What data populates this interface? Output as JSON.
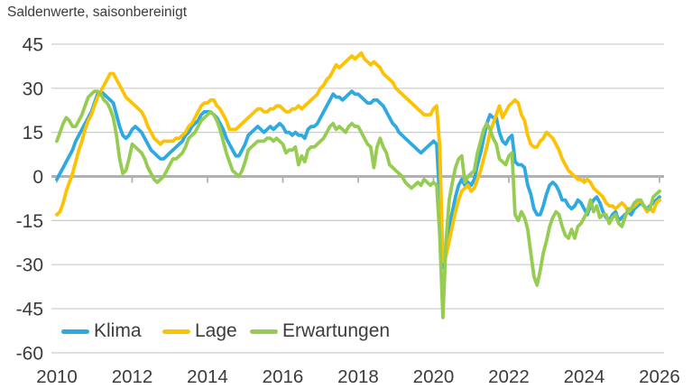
{
  "title": "Saldenwerte, saisonbereinigt",
  "colors": {
    "klima": "#2FA9E1",
    "lage": "#FCC203",
    "erwartungen": "#96CC51",
    "text": "#3C3C3B",
    "grid": "#CBCBCB",
    "zero_line": "#B1B1B1"
  },
  "legend": [
    {
      "label": "Klima",
      "color": "#2FA9E1"
    },
    {
      "label": "Lage",
      "color": "#FCC203"
    },
    {
      "label": "Erwartungen",
      "color": "#96CC51"
    }
  ],
  "chart_data": {
    "type": "line",
    "title": "Saldenwerte, saisonbereinigt",
    "x_start": "2010-01",
    "frequency": "monthly",
    "xlabel": "",
    "ylabel": "Saldenwerte, saisonbereinigt",
    "ylim": [
      -60,
      45
    ],
    "y_ticks": [
      45,
      30,
      15,
      0,
      -15,
      -30,
      -45,
      -60
    ],
    "x_ticks": [
      2010,
      2012,
      2014,
      2016,
      2018,
      2020,
      2022,
      2024,
      2026
    ],
    "grid": true,
    "legend_position": "bottom-left-inside",
    "series": [
      {
        "name": "Klima",
        "color": "#2FA9E1",
        "values": [
          -1,
          1,
          3,
          5,
          7,
          9,
          12,
          14,
          16,
          18,
          20,
          22,
          25,
          28,
          29,
          28,
          27,
          26,
          25,
          21,
          17,
          14,
          13,
          14,
          16,
          17,
          16,
          15,
          13,
          11,
          9,
          8,
          7,
          6,
          6,
          7,
          8,
          9,
          10,
          11,
          12,
          14,
          15,
          17,
          18,
          19,
          21,
          22,
          22,
          22,
          21,
          20,
          18,
          16,
          13,
          11,
          9,
          7,
          7,
          9,
          11,
          14,
          15,
          16,
          17,
          16,
          15,
          16,
          17,
          16,
          17,
          18,
          17,
          15,
          15,
          14,
          15,
          14,
          14,
          13,
          16,
          17,
          17,
          18,
          20,
          22,
          24,
          26,
          28,
          27,
          27,
          26,
          27,
          28,
          29,
          28,
          28,
          27,
          26,
          25,
          25,
          26,
          26,
          25,
          24,
          22,
          20,
          18,
          17,
          15,
          14,
          13,
          12,
          11,
          10,
          9,
          8,
          9,
          10,
          11,
          12,
          11,
          -8,
          -31,
          -26,
          -17,
          -12,
          -7,
          -3,
          -1,
          -3,
          -2,
          -3,
          -1,
          4,
          8,
          13,
          18,
          21,
          20,
          20,
          15,
          12,
          11,
          13,
          14,
          5,
          4,
          4,
          3,
          -3,
          -6,
          -11,
          -13,
          -13,
          -10,
          -6,
          -3,
          -2,
          -3,
          -5,
          -8,
          -8,
          -10,
          -11,
          -10,
          -8,
          -9,
          -11,
          -13,
          -10,
          -8,
          -7,
          -9,
          -12,
          -14,
          -15,
          -13,
          -12,
          -15,
          -14,
          -13,
          -12,
          -13,
          -11,
          -10,
          -9,
          -10,
          -11,
          -10,
          -9,
          -8,
          -7
        ]
      },
      {
        "name": "Lage",
        "color": "#FCC203",
        "values": [
          -13,
          -12,
          -9,
          -5,
          -2,
          1,
          5,
          9,
          12,
          16,
          19,
          21,
          24,
          27,
          29,
          31,
          33,
          35,
          35,
          33,
          31,
          29,
          27,
          26,
          25,
          24,
          23,
          22,
          20,
          17,
          15,
          13,
          12,
          11,
          12,
          12,
          12,
          12,
          13,
          13,
          14,
          15,
          17,
          18,
          20,
          22,
          24,
          25,
          25,
          26,
          26,
          24,
          23,
          21,
          19,
          16,
          16,
          16,
          17,
          18,
          19,
          20,
          21,
          22,
          23,
          23,
          22,
          22,
          23,
          23,
          24,
          24,
          23,
          22,
          22,
          23,
          23,
          24,
          23,
          24,
          25,
          26,
          27,
          28,
          30,
          31,
          33,
          34,
          36,
          38,
          37,
          38,
          39,
          40,
          41,
          40,
          41,
          42,
          40,
          39,
          38,
          39,
          38,
          37,
          35,
          34,
          33,
          32,
          30,
          29,
          28,
          27,
          26,
          25,
          24,
          23,
          22,
          21,
          21,
          21,
          23,
          24,
          10,
          -29,
          -27,
          -22,
          -17,
          -12,
          -8,
          -5,
          -4,
          -3,
          -5,
          -4,
          -1,
          2,
          6,
          10,
          15,
          18,
          21,
          24,
          20,
          22,
          24,
          25,
          26,
          25,
          21,
          19,
          14,
          11,
          10,
          10,
          12,
          13,
          15,
          14,
          13,
          11,
          9,
          6,
          4,
          2,
          1,
          0,
          -1,
          -1,
          -2,
          -1,
          -2,
          -4,
          -5,
          -6,
          -7,
          -9,
          -10,
          -10,
          -11,
          -10,
          -9,
          -10,
          -12,
          -11,
          -10,
          -9,
          -8,
          -10,
          -12,
          -11,
          -12,
          -9,
          -8
        ]
      },
      {
        "name": "Erwartungen",
        "color": "#96CC51",
        "values": [
          12,
          15,
          18,
          20,
          19,
          17,
          17,
          19,
          21,
          24,
          27,
          28,
          29,
          29,
          28,
          26,
          25,
          23,
          20,
          14,
          6,
          1,
          2,
          6,
          11,
          10,
          9,
          8,
          6,
          3,
          1,
          -1,
          -2,
          -1,
          0,
          2,
          4,
          6,
          6,
          7,
          8,
          10,
          13,
          14,
          15,
          17,
          19,
          20,
          21,
          22,
          21,
          19,
          16,
          12,
          8,
          5,
          2,
          1,
          0,
          2,
          5,
          9,
          10,
          11,
          12,
          12,
          12,
          13,
          13,
          12,
          13,
          12,
          11,
          8,
          9,
          9,
          10,
          4,
          7,
          5,
          9,
          10,
          10,
          11,
          12,
          13,
          15,
          17,
          18,
          16,
          17,
          16,
          15,
          17,
          18,
          17,
          17,
          15,
          13,
          11,
          10,
          3,
          10,
          13,
          10,
          8,
          4,
          3,
          2,
          1,
          0,
          -2,
          -3,
          -4,
          -3,
          -2,
          -3,
          -1,
          -2,
          -3,
          -2,
          -3,
          -20,
          -48,
          -22,
          -8,
          -2,
          3,
          6,
          7,
          -2,
          0,
          1,
          2,
          8,
          12,
          16,
          18,
          16,
          13,
          11,
          6,
          5,
          4,
          7,
          8,
          -13,
          -15,
          -12,
          -14,
          -18,
          -26,
          -34,
          -37,
          -32,
          -26,
          -22,
          -17,
          -14,
          -12,
          -13,
          -17,
          -20,
          -21,
          -18,
          -21,
          -17,
          -16,
          -14,
          -12,
          -8,
          -12,
          -10,
          -14,
          -13,
          -13,
          -16,
          -14,
          -13,
          -16,
          -17,
          -14,
          -11,
          -11,
          -9,
          -8,
          -8,
          -10,
          -11,
          -11,
          -7,
          -6,
          -5
        ]
      }
    ]
  }
}
